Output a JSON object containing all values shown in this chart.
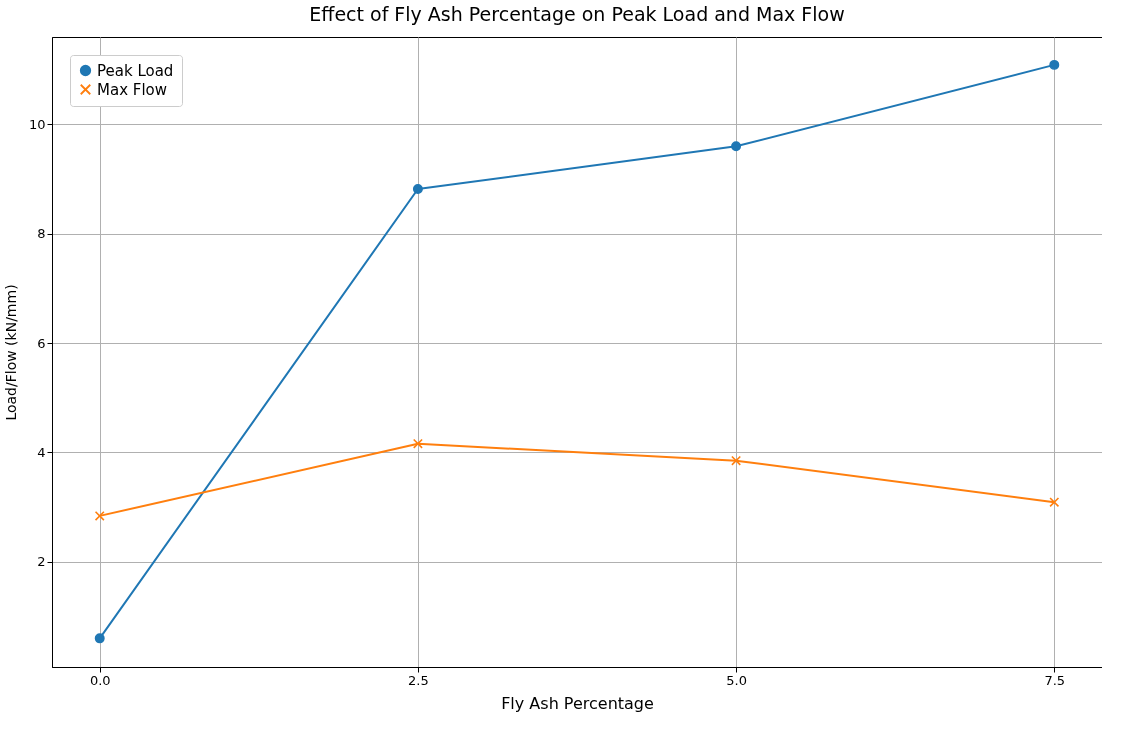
{
  "chart_data": {
    "type": "line",
    "title": "Effect of Fly Ash Percentage on Peak Load and Max Flow",
    "xlabel": "Fly Ash Percentage",
    "ylabel": "Load/Flow (kN/mm)",
    "x": [
      0.0,
      2.5,
      5.0,
      7.5
    ],
    "series": [
      {
        "name": "Peak Load",
        "color": "#1f77b4",
        "values": [
          0.6,
          8.82,
          9.6,
          11.09
        ],
        "marker": "circle"
      },
      {
        "name": "Max Flow",
        "color": "#ff7f0e",
        "values": [
          2.84,
          4.16,
          3.85,
          3.09
        ],
        "marker": "cross"
      }
    ],
    "xlim": [
      -0.375,
      7.875
    ],
    "xticks": [
      {
        "value": 0,
        "label": "0.0"
      },
      {
        "value": 2.5,
        "label": "2.5"
      },
      {
        "value": 5,
        "label": "5.0"
      },
      {
        "value": 7.5,
        "label": "7.5"
      }
    ],
    "ylim": [
      0.076,
      11.6
    ],
    "yticks": [
      2,
      4,
      6,
      8,
      10
    ],
    "grid": true,
    "legend": "top left",
    "line_style": "solid"
  }
}
